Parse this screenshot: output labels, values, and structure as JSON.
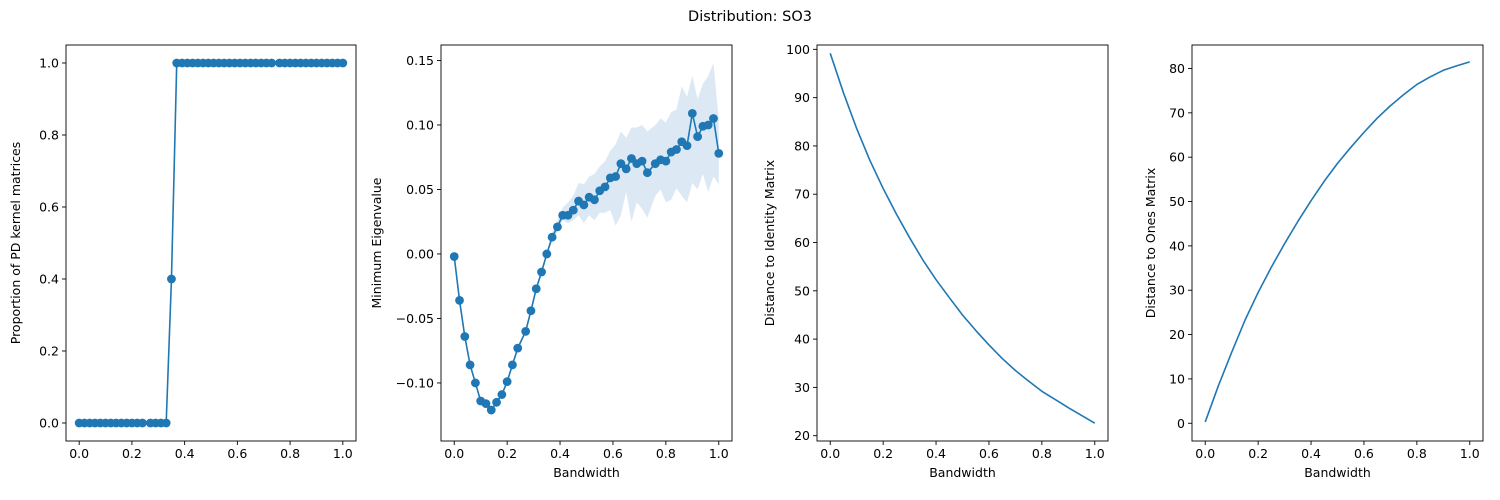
{
  "figure": {
    "suptitle": "Distribution: SO3"
  },
  "chart_data": [
    {
      "type": "line",
      "markers": true,
      "xlabel": "",
      "ylabel": "Proportion of PD kernel matrices",
      "xlim": [
        -0.05,
        1.05
      ],
      "ylim": [
        -0.05,
        1.05
      ],
      "xticks": [
        0.0,
        0.2,
        0.4,
        0.6,
        0.8,
        1.0
      ],
      "xtick_labels": [
        "0.0",
        "0.2",
        "0.4",
        "0.6",
        "0.8",
        "1.0"
      ],
      "yticks": [
        0.0,
        0.2,
        0.4,
        0.6,
        0.8,
        1.0
      ],
      "ytick_labels": [
        "0.0",
        "0.2",
        "0.4",
        "0.6",
        "0.8",
        "1.0"
      ],
      "color": "#1f77b4",
      "series": [
        {
          "x": [
            0.0,
            0.02,
            0.04,
            0.06,
            0.08,
            0.1,
            0.12,
            0.14,
            0.16,
            0.18,
            0.2,
            0.22,
            0.24,
            0.27,
            0.29,
            0.31,
            0.33,
            0.35,
            0.37,
            0.39,
            0.41,
            0.43,
            0.45,
            0.47,
            0.49,
            0.51,
            0.53,
            0.55,
            0.57,
            0.59,
            0.61,
            0.63,
            0.65,
            0.67,
            0.69,
            0.71,
            0.73,
            0.76,
            0.78,
            0.8,
            0.82,
            0.84,
            0.86,
            0.88,
            0.9,
            0.92,
            0.94,
            0.96,
            0.98,
            1.0
          ],
          "y": [
            0,
            0,
            0,
            0,
            0,
            0,
            0,
            0,
            0,
            0,
            0,
            0,
            0,
            0,
            0,
            0,
            0,
            0.4,
            1,
            1,
            1,
            1,
            1,
            1,
            1,
            1,
            1,
            1,
            1,
            1,
            1,
            1,
            1,
            1,
            1,
            1,
            1,
            1,
            1,
            1,
            1,
            1,
            1,
            1,
            1,
            1,
            1,
            1,
            1,
            1
          ]
        }
      ]
    },
    {
      "type": "line",
      "markers": true,
      "band": true,
      "xlabel": "Bandwidth",
      "ylabel": "Minimum Eigenvalue",
      "xlim": [
        -0.05,
        1.05
      ],
      "ylim": [
        -0.145,
        0.162
      ],
      "xticks": [
        0.0,
        0.2,
        0.4,
        0.6,
        0.8,
        1.0
      ],
      "xtick_labels": [
        "0.0",
        "0.2",
        "0.4",
        "0.6",
        "0.8",
        "1.0"
      ],
      "yticks": [
        -0.1,
        -0.05,
        0.0,
        0.05,
        0.1,
        0.15
      ],
      "ytick_labels": [
        "−0.10",
        "−0.05",
        "0.00",
        "0.05",
        "0.10",
        "0.15"
      ],
      "color": "#1f77b4",
      "band_color": "#dce9f5",
      "series": [
        {
          "x": [
            0.0,
            0.02,
            0.04,
            0.06,
            0.08,
            0.1,
            0.12,
            0.14,
            0.16,
            0.18,
            0.2,
            0.22,
            0.24,
            0.27,
            0.29,
            0.31,
            0.33,
            0.35,
            0.37,
            0.39,
            0.41,
            0.43,
            0.45,
            0.47,
            0.49,
            0.51,
            0.53,
            0.55,
            0.57,
            0.59,
            0.61,
            0.63,
            0.65,
            0.67,
            0.69,
            0.71,
            0.73,
            0.76,
            0.78,
            0.8,
            0.82,
            0.84,
            0.86,
            0.88,
            0.9,
            0.92,
            0.94,
            0.96,
            0.98,
            1.0
          ],
          "y": [
            -0.002,
            -0.036,
            -0.064,
            -0.086,
            -0.1,
            -0.114,
            -0.116,
            -0.121,
            -0.115,
            -0.109,
            -0.099,
            -0.086,
            -0.073,
            -0.06,
            -0.044,
            -0.027,
            -0.014,
            0.0,
            0.013,
            0.021,
            0.03,
            0.03,
            0.034,
            0.041,
            0.038,
            0.044,
            0.042,
            0.049,
            0.052,
            0.059,
            0.06,
            0.07,
            0.066,
            0.074,
            0.07,
            0.072,
            0.063,
            0.07,
            0.073,
            0.072,
            0.079,
            0.081,
            0.087,
            0.084,
            0.109,
            0.091,
            0.099,
            0.1,
            0.105,
            0.078
          ],
          "lower": [
            -0.002,
            -0.036,
            -0.064,
            -0.086,
            -0.101,
            -0.115,
            -0.117,
            -0.122,
            -0.116,
            -0.11,
            -0.1,
            -0.087,
            -0.074,
            -0.061,
            -0.045,
            -0.028,
            -0.015,
            -0.002,
            0.01,
            0.017,
            0.026,
            0.024,
            0.026,
            0.03,
            0.024,
            0.03,
            0.026,
            0.032,
            0.032,
            0.034,
            0.022,
            0.03,
            0.048,
            0.025,
            0.04,
            0.035,
            0.028,
            0.045,
            0.05,
            0.04,
            0.042,
            0.051,
            0.045,
            0.04,
            0.055,
            0.05,
            0.062,
            0.048,
            0.06,
            0.054
          ],
          "upper": [
            -0.002,
            -0.036,
            -0.064,
            -0.086,
            -0.099,
            -0.113,
            -0.115,
            -0.12,
            -0.114,
            -0.108,
            -0.098,
            -0.085,
            -0.072,
            -0.059,
            -0.043,
            -0.026,
            -0.012,
            0.002,
            0.017,
            0.026,
            0.036,
            0.04,
            0.045,
            0.055,
            0.054,
            0.06,
            0.062,
            0.068,
            0.072,
            0.08,
            0.085,
            0.095,
            0.09,
            0.098,
            0.098,
            0.1,
            0.095,
            0.1,
            0.105,
            0.102,
            0.11,
            0.112,
            0.13,
            0.122,
            0.138,
            0.12,
            0.132,
            0.138,
            0.148,
            0.104
          ]
        }
      ]
    },
    {
      "type": "line",
      "markers": false,
      "xlabel": "Bandwidth",
      "ylabel": "Distance to Identity Matrix",
      "xlim": [
        -0.05,
        1.05
      ],
      "ylim": [
        18.9,
        100.9
      ],
      "xticks": [
        0.0,
        0.2,
        0.4,
        0.6,
        0.8,
        1.0
      ],
      "xtick_labels": [
        "0.0",
        "0.2",
        "0.4",
        "0.6",
        "0.8",
        "1.0"
      ],
      "yticks": [
        20,
        30,
        40,
        50,
        60,
        70,
        80,
        90,
        100
      ],
      "ytick_labels": [
        "20",
        "30",
        "40",
        "50",
        "60",
        "70",
        "80",
        "90",
        "100"
      ],
      "color": "#1f77b4",
      "series": [
        {
          "x": [
            0.0,
            0.05,
            0.1,
            0.15,
            0.2,
            0.25,
            0.3,
            0.35,
            0.4,
            0.45,
            0.5,
            0.55,
            0.6,
            0.65,
            0.7,
            0.75,
            0.8,
            0.85,
            0.9,
            0.95,
            1.0
          ],
          "y": [
            99.2,
            91.0,
            83.6,
            77.0,
            71.2,
            65.9,
            61.0,
            56.4,
            52.3,
            48.6,
            45.0,
            41.8,
            38.8,
            36.0,
            33.5,
            31.3,
            29.2,
            27.5,
            25.8,
            24.2,
            22.6
          ]
        }
      ]
    },
    {
      "type": "line",
      "markers": false,
      "xlabel": "Bandwidth",
      "ylabel": "Distance to Ones Matrix",
      "xlim": [
        -0.05,
        1.05
      ],
      "ylim": [
        -4.0,
        85.3
      ],
      "xticks": [
        0.0,
        0.2,
        0.4,
        0.6,
        0.8,
        1.0
      ],
      "xtick_labels": [
        "0.0",
        "0.2",
        "0.4",
        "0.6",
        "0.8",
        "1.0"
      ],
      "yticks": [
        0,
        10,
        20,
        30,
        40,
        50,
        60,
        70,
        80
      ],
      "ytick_labels": [
        "0",
        "10",
        "20",
        "30",
        "40",
        "50",
        "60",
        "70",
        "80"
      ],
      "color": "#1f77b4",
      "series": [
        {
          "x": [
            0.0,
            0.05,
            0.1,
            0.15,
            0.2,
            0.25,
            0.3,
            0.35,
            0.4,
            0.45,
            0.5,
            0.55,
            0.6,
            0.65,
            0.7,
            0.75,
            0.8,
            0.85,
            0.9,
            0.95,
            1.0
          ],
          "y": [
            0.3,
            8.5,
            16.0,
            23.2,
            29.5,
            35.2,
            40.5,
            45.5,
            50.2,
            54.6,
            58.6,
            62.2,
            65.6,
            68.8,
            71.6,
            74.1,
            76.4,
            78.1,
            79.6,
            80.6,
            81.5
          ]
        }
      ]
    }
  ]
}
